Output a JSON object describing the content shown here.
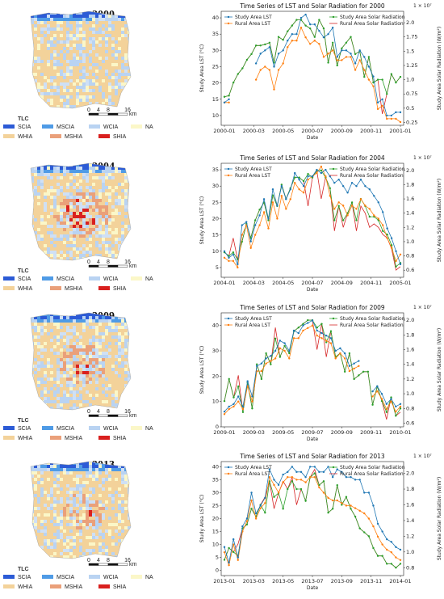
{
  "colors": {
    "study_lst": "#1f77b4",
    "rural_lst": "#ff7f0e",
    "study_solar": "#2ca02c",
    "rural_solar": "#d62728"
  },
  "map_legend": {
    "title": "TLC",
    "items": [
      {
        "label": "SCIA",
        "color": "#2c5bd6"
      },
      {
        "label": "MSCIA",
        "color": "#4f9be6"
      },
      {
        "label": "WCIA",
        "color": "#b9d3f2"
      },
      {
        "label": "NA",
        "color": "#fbf7c8"
      },
      {
        "label": "WHIA",
        "color": "#f3d29a"
      },
      {
        "label": "MSHIA",
        "color": "#eaa07a"
      },
      {
        "label": "SHIA",
        "color": "#d9201f"
      }
    ],
    "scale_ticks": [
      "0",
      "4",
      "8",
      "16"
    ],
    "scale_unit": "km"
  },
  "panels": [
    {
      "year": "2000",
      "map_heat": 0.25
    },
    {
      "year": "2004",
      "map_heat": 0.7
    },
    {
      "year": "2009",
      "map_heat": 0.6
    },
    {
      "year": "2013",
      "map_heat": 0.55
    }
  ],
  "chart_data": [
    {
      "type": "line",
      "title": "Time Series of LST and Solar Radiation for 2000",
      "xlabel": "Date",
      "ylabel": "Study Area LST (°C)",
      "y2label": "Study Area Solar Radiation (W/m²)",
      "y2_multiplier": "1e7",
      "x_ticks": [
        "2000-01",
        "2000-03",
        "2000-05",
        "2000-07",
        "2000-09",
        "2000-11",
        "2001-01"
      ],
      "ylim": [
        7,
        42
      ],
      "y_ticks": [
        10,
        15,
        20,
        25,
        30,
        35,
        40
      ],
      "y2lim": [
        0.2,
        2.2
      ],
      "y2_ticks": [
        0.25,
        0.5,
        0.75,
        1.0,
        1.25,
        1.5,
        1.75,
        2.0
      ],
      "legend_left": [
        "Study Area LST",
        "Rural Area LST"
      ],
      "legend_right": [
        "Study Area Solar Radiation",
        "Rural Area Solar Radiation"
      ],
      "series": [
        {
          "name": "Study Area LST",
          "y": [
            14,
            15,
            null,
            null,
            null,
            null,
            null,
            26,
            29,
            30,
            31,
            25,
            29,
            30,
            33,
            35,
            35,
            40,
            41,
            38,
            38,
            36,
            34,
            35,
            37,
            28,
            30,
            30,
            29,
            26,
            30,
            28,
            25,
            22,
            14,
            15,
            10,
            10,
            11,
            11
          ]
        },
        {
          "name": "Rural Area LST",
          "y": [
            14,
            14,
            null,
            null,
            null,
            null,
            null,
            21,
            24,
            25,
            24,
            18,
            24,
            26,
            31,
            33,
            33,
            37,
            34,
            32,
            33,
            32,
            28,
            29,
            30,
            27,
            27,
            28,
            28,
            24,
            27,
            24,
            21,
            19,
            12,
            13,
            9,
            9,
            9,
            8
          ]
        },
        {
          "name": "Study Area Solar Radiation",
          "y": [
            0.7,
            0.72,
            0.95,
            1.1,
            1.2,
            1.35,
            1.45,
            1.6,
            1.6,
            1.62,
            1.65,
            1.3,
            1.75,
            1.7,
            1.85,
            1.95,
            2.05,
            2.05,
            1.95,
            1.9,
            1.75,
            2.05,
            1.9,
            1.3,
            1.65,
            1.25,
            1.55,
            1.65,
            1.75,
            1.45,
            1.5,
            1.05,
            1.4,
            0.95,
            1.0,
            1.0,
            0.75,
            1.1,
            0.95,
            1.05
          ]
        },
        {
          "name": "Rural Area Solar Radiation",
          "y": [
            0.7,
            0.72,
            0.95,
            1.1,
            1.2,
            1.35,
            1.45,
            1.6,
            1.6,
            1.62,
            1.65,
            1.3,
            1.75,
            1.7,
            1.85,
            1.95,
            2.05,
            2.05,
            1.95,
            1.9,
            1.75,
            2.05,
            1.9,
            1.3,
            1.65,
            1.25,
            1.55,
            1.65,
            1.75,
            1.45,
            1.5,
            1.05,
            1.4,
            0.95,
            1.0,
            0.4,
            0.75,
            1.1,
            0.95,
            1.05
          ]
        }
      ]
    },
    {
      "type": "line",
      "title": "Time Series of LST and Solar Radiation for 2004",
      "xlabel": "Date",
      "ylabel": "Study Area LST (°C)",
      "y2label": "Study Area Solar Radiation (W/m²)",
      "y2_multiplier": "1e7",
      "x_ticks": [
        "2004-01",
        "2004-03",
        "2004-05",
        "2004-07",
        "2004-09",
        "2004-11",
        "2005-01"
      ],
      "ylim": [
        2,
        37
      ],
      "y_ticks": [
        5,
        10,
        15,
        20,
        25,
        30,
        35
      ],
      "y2lim": [
        0.5,
        2.1
      ],
      "y2_ticks": [
        0.6,
        0.8,
        1.0,
        1.2,
        1.4,
        1.6,
        1.8,
        2.0
      ],
      "legend_left": [
        "Study Area LST",
        "Rural Area LST"
      ],
      "legend_right": [
        "Study Area Solar Radiation",
        "Rural Area Solar Radiation"
      ],
      "series": [
        {
          "name": "Study Area LST",
          "y": [
            10,
            8,
            9,
            6,
            18,
            19,
            13,
            18,
            21,
            26,
            20,
            29,
            24,
            30,
            26,
            29,
            34,
            32,
            30,
            33,
            33,
            35,
            34,
            35,
            33,
            31,
            32,
            30,
            28,
            31,
            30,
            32,
            30,
            29,
            27,
            25,
            22,
            17,
            14,
            10,
            6
          ]
        },
        {
          "name": "Rural Area LST",
          "y": [
            8,
            7,
            7,
            5,
            15,
            18,
            11,
            15,
            18,
            22,
            17,
            25,
            20,
            27,
            23,
            26,
            31,
            29,
            28,
            32,
            33,
            34,
            36,
            33,
            27,
            23,
            25,
            24,
            21,
            24,
            23,
            26,
            24,
            23,
            21,
            20,
            18,
            14,
            11,
            7,
            9
          ]
        },
        {
          "name": "Study Area Solar Radiation",
          "y": [
            0.85,
            0.8,
            0.85,
            0.75,
            1.0,
            1.25,
            1.05,
            1.3,
            1.45,
            1.55,
            1.3,
            1.65,
            1.5,
            1.8,
            1.6,
            1.75,
            1.9,
            1.9,
            1.85,
            1.95,
            1.9,
            2.0,
            2.0,
            1.9,
            1.75,
            1.3,
            1.5,
            1.3,
            1.4,
            1.55,
            1.3,
            1.6,
            1.5,
            1.35,
            1.35,
            1.3,
            1.15,
            1.1,
            0.95,
            0.65,
            0.7
          ]
        },
        {
          "name": "Rural Area Solar Radiation",
          "y": [
            0.85,
            0.8,
            1.05,
            0.75,
            1.0,
            1.25,
            1.05,
            1.3,
            1.45,
            1.55,
            1.3,
            1.65,
            1.5,
            1.8,
            1.6,
            1.75,
            1.9,
            1.9,
            1.85,
            1.5,
            1.9,
            2.0,
            1.6,
            1.9,
            1.75,
            1.15,
            1.5,
            1.2,
            1.4,
            1.55,
            1.15,
            1.5,
            1.4,
            1.2,
            1.25,
            1.2,
            1.1,
            1.05,
            0.9,
            0.6,
            0.65
          ]
        }
      ]
    },
    {
      "type": "line",
      "title": "Time Series of LST and Solar Radiation for 2009",
      "xlabel": "Date",
      "ylabel": "Study Area LST (°C)",
      "y2label": "Study Area Solar Radiation (W/m²)",
      "y2_multiplier": "1e7",
      "x_ticks": [
        "2009-01",
        "2009-03",
        "2009-05",
        "2009-07",
        "2009-09",
        "2009-11",
        "2010-01"
      ],
      "ylim": [
        0,
        45
      ],
      "y_ticks": [
        0,
        10,
        20,
        30,
        40
      ],
      "y2lim": [
        0.55,
        2.1
      ],
      "y2_ticks": [
        0.6,
        0.8,
        1.0,
        1.2,
        1.4,
        1.6,
        1.8,
        2.0
      ],
      "legend_left": [
        "Study Area LST",
        "Rural Area LST"
      ],
      "legend_right": [
        "Study Area Solar Radiation",
        "Rural Area Solar Radiation"
      ],
      "series": [
        {
          "name": "Study Area LST",
          "y": [
            6,
            8,
            9,
            12,
            8,
            18,
            12,
            24,
            25,
            27,
            28,
            30,
            34,
            33,
            30,
            38,
            37,
            40,
            41,
            42,
            38,
            37,
            36,
            35,
            30,
            31,
            29,
            24,
            25,
            26,
            null,
            null,
            14,
            16,
            13,
            9,
            11,
            8,
            9
          ]
        },
        {
          "name": "Rural Area LST",
          "y": [
            5,
            7,
            8,
            10,
            7,
            16,
            10,
            22,
            22,
            25,
            26,
            27,
            31,
            30,
            27,
            35,
            35,
            38,
            39,
            40,
            36,
            35,
            34,
            33,
            27,
            29,
            27,
            22,
            23,
            24,
            null,
            null,
            12,
            14,
            11,
            7,
            10,
            6,
            8
          ]
        },
        {
          "name": "Study Area Solar Radiation",
          "y": [
            0.9,
            1.2,
            0.95,
            1.1,
            0.75,
            1.15,
            0.8,
            1.4,
            1.2,
            1.55,
            1.4,
            1.75,
            1.5,
            1.65,
            1.55,
            1.85,
            1.9,
            1.95,
            2.0,
            2.0,
            1.9,
            1.95,
            1.7,
            1.85,
            1.5,
            1.55,
            1.3,
            1.55,
            1.2,
            1.25,
            1.3,
            1.3,
            0.85,
            1.1,
            0.9,
            0.75,
            0.95,
            0.7,
            0.8
          ]
        },
        {
          "name": "Rural Area Solar Radiation",
          "y": [
            0.9,
            1.2,
            0.95,
            1.25,
            0.75,
            1.15,
            0.8,
            1.4,
            1.2,
            1.55,
            1.4,
            1.9,
            1.5,
            1.65,
            1.55,
            1.85,
            1.9,
            1.95,
            2.0,
            2.0,
            1.6,
            1.95,
            1.5,
            1.85,
            1.5,
            1.55,
            1.3,
            1.55,
            1.2,
            1.25,
            1.3,
            1.3,
            0.85,
            1.1,
            0.9,
            0.65,
            0.95,
            0.7,
            0.75
          ]
        }
      ]
    },
    {
      "type": "line",
      "title": "Time Series of LST and Solar Radiation for 2013",
      "xlabel": "Date",
      "ylabel": "Study Area LST (°C)",
      "y2label": "Study Area Solar Radiation (W/m²)",
      "y2_multiplier": "1e7",
      "x_ticks": [
        "2013-01",
        "2013-03",
        "2013-05",
        "2013-07",
        "2013-09",
        "2013-11",
        "2014-01"
      ],
      "ylim": [
        -2,
        42
      ],
      "y_ticks": [
        0,
        5,
        10,
        15,
        20,
        25,
        30,
        35,
        40
      ],
      "y2lim": [
        0.7,
        2.15
      ],
      "y2_ticks": [
        0.8,
        1.0,
        1.2,
        1.4,
        1.6,
        1.8,
        2.0
      ],
      "legend_left": [
        "Study Area LST",
        "Rural Area LST"
      ],
      "legend_right": [
        "Study Area Solar Radiation",
        "Rural Area Solar Radiation"
      ],
      "series": [
        {
          "name": "Study Area LST",
          "y": [
            9,
            3,
            12,
            5,
            17,
            20,
            30,
            22,
            25,
            28,
            39,
            35,
            33,
            37,
            38,
            40,
            38,
            38,
            36,
            40,
            40,
            38,
            38,
            40,
            36,
            39,
            38,
            36,
            36,
            35,
            35,
            30,
            30,
            25,
            18,
            15,
            12,
            11,
            9,
            8
          ]
        },
        {
          "name": "Rural Area LST",
          "y": [
            7,
            2,
            10,
            4,
            15,
            19,
            27,
            20,
            24,
            26,
            36,
            33,
            30,
            34,
            36,
            36,
            35,
            35,
            34,
            36,
            36,
            32,
            30,
            28,
            27,
            27,
            26,
            25,
            25,
            24,
            23,
            22,
            20,
            17,
            13,
            10,
            8,
            7,
            5,
            4
          ]
        },
        {
          "name": "Study Area Solar Radiation",
          "y": [
            0.9,
            1.05,
            1.0,
            0.95,
            1.3,
            1.35,
            1.55,
            1.45,
            1.6,
            1.5,
            1.9,
            1.7,
            1.75,
            1.55,
            1.8,
            1.9,
            1.8,
            1.8,
            1.65,
            1.95,
            2.0,
            1.85,
            1.9,
            1.5,
            1.55,
            1.85,
            1.6,
            1.7,
            1.55,
            1.45,
            1.3,
            1.25,
            1.2,
            1.05,
            0.95,
            0.95,
            0.85,
            0.85,
            0.8,
            0.85
          ]
        },
        {
          "name": "Rural Area Solar Radiation",
          "y": [
            0.9,
            1.05,
            1.0,
            1.1,
            1.3,
            1.35,
            1.55,
            1.45,
            1.6,
            1.7,
            1.9,
            1.55,
            1.75,
            1.9,
            1.8,
            1.95,
            1.6,
            1.8,
            1.65,
            1.95,
            2.05,
            1.85,
            1.9,
            1.5,
            1.55,
            1.85,
            1.6,
            1.7,
            1.55,
            1.45,
            1.3,
            1.25,
            1.2,
            1.05,
            0.95,
            0.95,
            0.85,
            0.85,
            0.8,
            0.85
          ]
        }
      ]
    }
  ]
}
